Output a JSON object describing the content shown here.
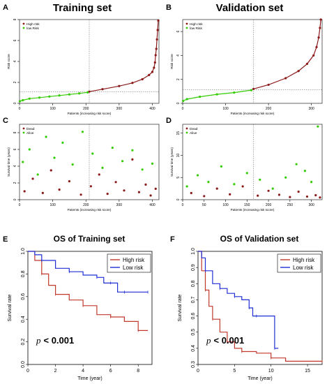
{
  "figure": {
    "colors": {
      "high": "#8b1a1a",
      "low": "#33cc00",
      "km_high": "#c0392b",
      "km_low": "#1f2fd6",
      "cutoff": "#555555"
    }
  },
  "chart_data": [
    {
      "panel": "A",
      "type": "scatter",
      "title": "Training set",
      "xlabel": "Patients (increasing risk score)",
      "ylabel": "Risk score",
      "xlim": [
        0,
        420
      ],
      "ylim": [
        0,
        8
      ],
      "xticks": [
        0,
        100,
        200,
        300,
        400
      ],
      "yticks": [
        0,
        2,
        4,
        6,
        8
      ],
      "cutoff_x": 210,
      "cutoff_y": 1.1,
      "legend": [
        "High risk",
        "low Risk"
      ],
      "legend_position": "top-left",
      "series": [
        {
          "name": "High risk",
          "x": [
            210,
            250,
            300,
            340,
            370,
            390,
            400,
            405,
            408,
            410,
            412,
            414,
            416,
            418
          ],
          "y": [
            1.12,
            1.35,
            1.65,
            1.95,
            2.3,
            2.7,
            3.0,
            3.4,
            3.9,
            4.6,
            5.2,
            6.1,
            7.0,
            7.9
          ]
        },
        {
          "name": "low Risk",
          "x": [
            1,
            10,
            30,
            60,
            90,
            120,
            150,
            180,
            205
          ],
          "y": [
            0.2,
            0.3,
            0.45,
            0.55,
            0.65,
            0.75,
            0.85,
            0.95,
            1.05
          ]
        }
      ]
    },
    {
      "panel": "B",
      "type": "scatter",
      "title": "Validation set",
      "xlabel": "Patients (increasing risk score)",
      "ylabel": "Risk score",
      "xlim": [
        0,
        325
      ],
      "ylim": [
        0,
        7
      ],
      "xticks": [
        0,
        100,
        200,
        300
      ],
      "yticks": [
        0,
        2,
        4,
        6
      ],
      "cutoff_x": 165,
      "cutoff_y": 1.15,
      "legend": [
        "High risk",
        "low Risk"
      ],
      "legend_position": "top-left",
      "series": [
        {
          "name": "High risk",
          "x": [
            165,
            200,
            240,
            270,
            290,
            305,
            312,
            317,
            320,
            322
          ],
          "y": [
            1.2,
            1.55,
            2.1,
            2.7,
            3.3,
            4.0,
            4.7,
            5.5,
            6.3,
            7.0
          ]
        },
        {
          "name": "low Risk",
          "x": [
            1,
            10,
            40,
            80,
            120,
            160
          ],
          "y": [
            0.2,
            0.35,
            0.55,
            0.75,
            0.9,
            1.1
          ]
        }
      ]
    },
    {
      "panel": "C",
      "type": "scatter",
      "xlabel": "Patients (increasing risk score)",
      "ylabel": "Survival time (years)",
      "xlim": [
        0,
        420
      ],
      "ylim": [
        0,
        9
      ],
      "xticks": [
        0,
        100,
        200,
        300,
        400
      ],
      "yticks": [
        0,
        2,
        4,
        6,
        8
      ],
      "cutoff_x": 210,
      "legend": [
        "Dead",
        "Alive"
      ],
      "legend_position": "top-left",
      "series": [
        {
          "name": "Dead",
          "x": [
            15,
            40,
            70,
            95,
            120,
            150,
            185,
            215,
            240,
            265,
            290,
            315,
            340,
            360,
            380,
            395,
            410
          ],
          "y": [
            1.0,
            2.5,
            0.8,
            3.5,
            1.2,
            2.2,
            0.6,
            1.6,
            3.0,
            0.7,
            2.1,
            1.1,
            4.8,
            0.9,
            1.8,
            0.5,
            1.3
          ]
        },
        {
          "name": "Alive",
          "x": [
            10,
            30,
            55,
            80,
            105,
            130,
            160,
            190,
            220,
            250,
            280,
            310,
            340,
            370,
            400
          ],
          "y": [
            4.5,
            6.0,
            3.0,
            7.5,
            5.0,
            6.8,
            4.2,
            8.1,
            5.5,
            3.8,
            6.2,
            4.6,
            5.9,
            3.6,
            4.3
          ]
        }
      ]
    },
    {
      "panel": "D",
      "type": "scatter",
      "xlabel": "Patients (increasing risk score)",
      "ylabel": "Survival time (years)",
      "xlim": [
        0,
        325
      ],
      "ylim": [
        0,
        17
      ],
      "xticks": [
        0,
        50,
        100,
        150,
        200,
        250,
        300
      ],
      "yticks": [
        0,
        5,
        10,
        15
      ],
      "cutoff_x": 165,
      "legend": [
        "Dead",
        "Alive"
      ],
      "legend_position": "top-left",
      "series": [
        {
          "name": "Dead",
          "x": [
            20,
            50,
            80,
            110,
            140,
            175,
            200,
            225,
            250,
            270,
            290,
            310,
            320
          ],
          "y": [
            1.5,
            0.8,
            2.5,
            1.2,
            3.0,
            0.9,
            2.0,
            1.1,
            0.6,
            1.8,
            0.7,
            1.0,
            0.5
          ]
        },
        {
          "name": "Alive",
          "x": [
            10,
            35,
            60,
            90,
            120,
            150,
            180,
            210,
            240,
            265,
            285,
            300,
            315
          ],
          "y": [
            3.0,
            5.5,
            4.0,
            7.5,
            3.5,
            6.0,
            4.5,
            2.5,
            5.0,
            8.0,
            6.5,
            4.0,
            16.5
          ]
        }
      ]
    },
    {
      "panel": "E",
      "type": "line",
      "title": "OS of Training set",
      "xlabel": "Time (year)",
      "ylabel": "Survival rate",
      "xlim": [
        0,
        9
      ],
      "ylim": [
        0.0,
        1.0
      ],
      "xticks": [
        0,
        2,
        4,
        6,
        8
      ],
      "yticks": [
        0.0,
        0.2,
        0.4,
        0.6,
        0.8,
        1.0
      ],
      "legend": [
        "High risk",
        "Low risk"
      ],
      "legend_position": "top-right",
      "annotation_p": "p",
      "annotation_value": "< 0.001",
      "series": [
        {
          "name": "High risk",
          "x": [
            0,
            0.5,
            1,
            1.5,
            2,
            3,
            4,
            5,
            6,
            7,
            8,
            8.7
          ],
          "y": [
            1.0,
            0.92,
            0.8,
            0.7,
            0.62,
            0.57,
            0.52,
            0.44,
            0.42,
            0.38,
            0.3,
            0.3
          ]
        },
        {
          "name": "Low risk",
          "x": [
            0,
            0.5,
            1,
            2,
            3,
            4,
            5,
            5.5,
            6,
            6.5,
            7,
            8,
            8.7
          ],
          "y": [
            1.0,
            0.97,
            0.92,
            0.85,
            0.82,
            0.79,
            0.77,
            0.72,
            0.72,
            0.64,
            0.64,
            0.64,
            0.64
          ]
        }
      ]
    },
    {
      "panel": "F",
      "type": "line",
      "title": "OS of Validation set",
      "xlabel": "Time (year)",
      "ylabel": "Survival rate",
      "xlim": [
        0,
        17
      ],
      "ylim": [
        0.3,
        1.0
      ],
      "xticks": [
        0,
        5,
        10,
        15
      ],
      "yticks": [
        0.3,
        0.4,
        0.5,
        0.6,
        0.7,
        0.8,
        0.9,
        1.0
      ],
      "legend": [
        "High risk",
        "Low risk"
      ],
      "legend_position": "top-right",
      "annotation_p": "p",
      "annotation_value": "< 0.001",
      "series": [
        {
          "name": "High risk",
          "x": [
            0,
            0.5,
            1,
            1.5,
            2,
            3,
            4,
            5,
            6,
            8,
            10,
            12,
            17
          ],
          "y": [
            1.0,
            0.88,
            0.76,
            0.66,
            0.58,
            0.5,
            0.44,
            0.4,
            0.38,
            0.37,
            0.34,
            0.32,
            0.32
          ]
        },
        {
          "name": "Low risk",
          "x": [
            0,
            0.5,
            1,
            2,
            3,
            4,
            5,
            6,
            7,
            7.5,
            8,
            10,
            10.5,
            11
          ],
          "y": [
            1.0,
            0.96,
            0.88,
            0.8,
            0.77,
            0.74,
            0.72,
            0.7,
            0.65,
            0.6,
            0.6,
            0.6,
            0.4,
            0.4
          ]
        }
      ]
    }
  ]
}
